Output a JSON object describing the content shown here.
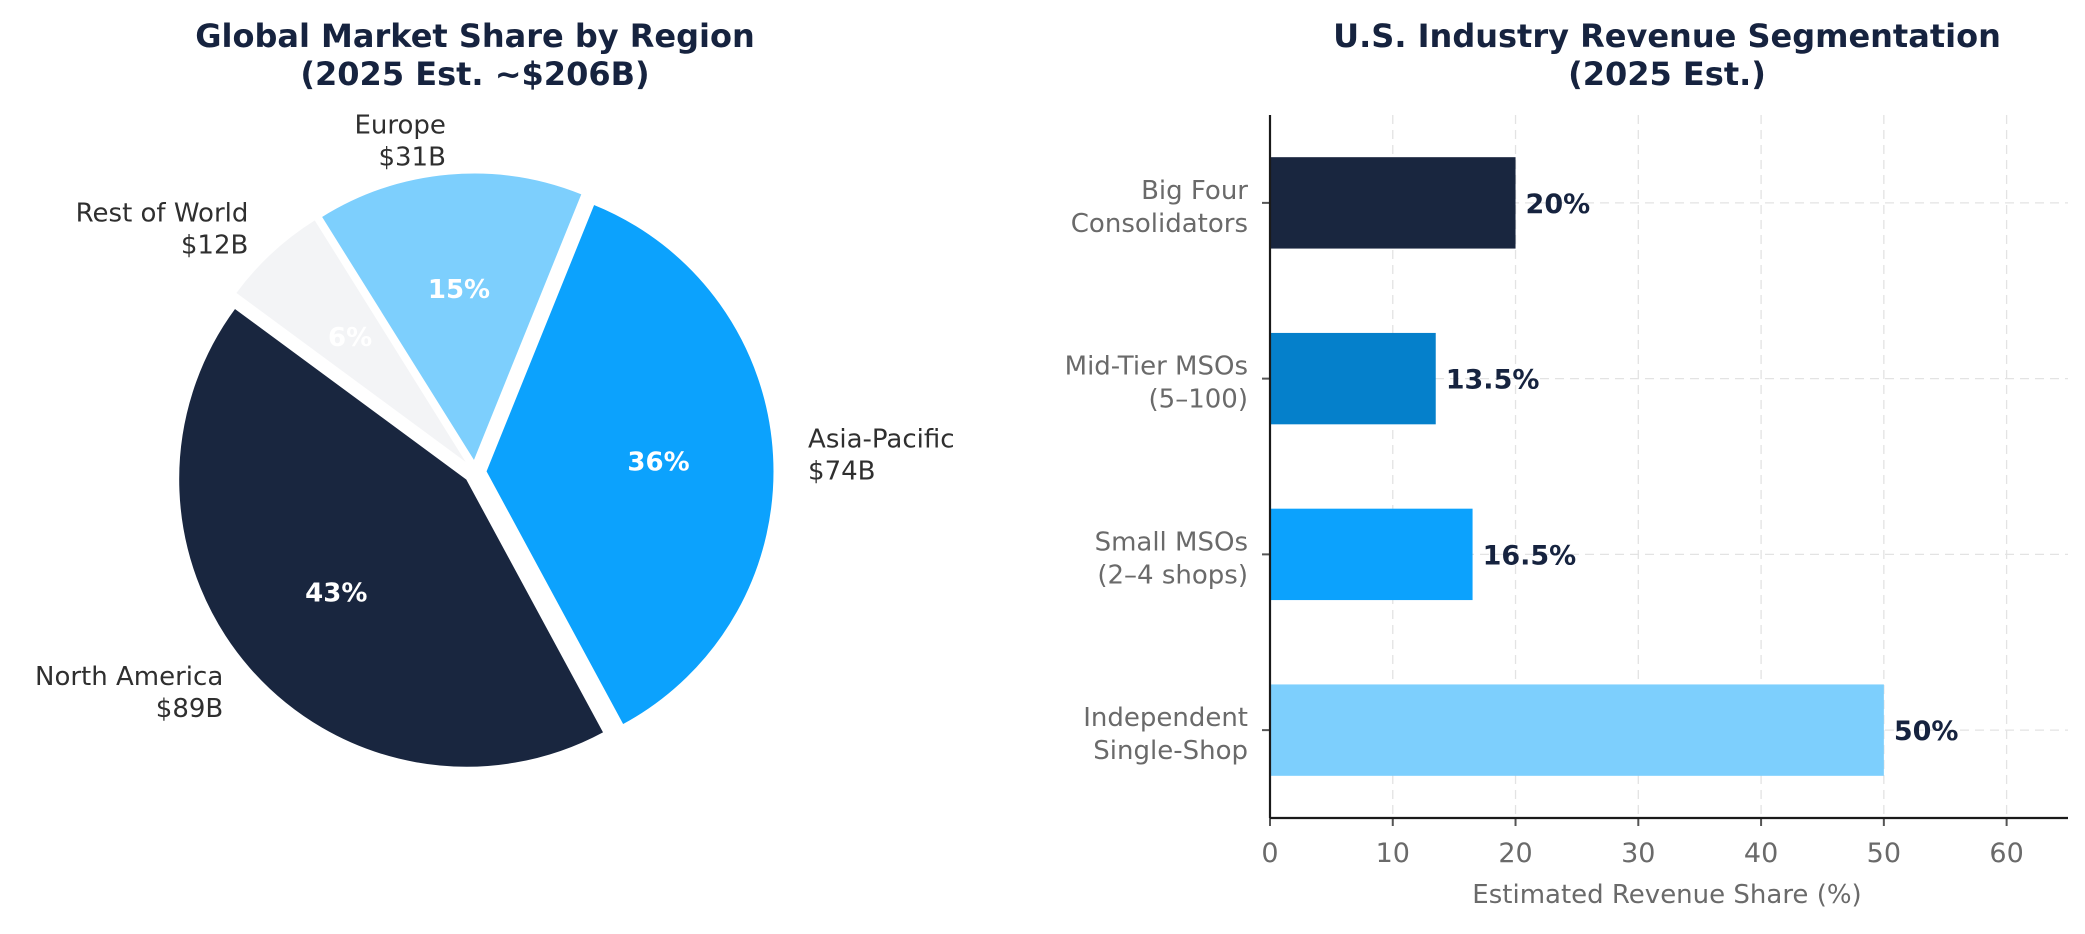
{
  "chart_data": [
    {
      "type": "pie",
      "title": "Global Market Share by Region\n(2025 Est. ~$206B)",
      "slices": [
        {
          "name": "Europe",
          "value_label": "$31B",
          "value": 31,
          "percent": 15,
          "percent_label": "15%",
          "color": "#7dcffd"
        },
        {
          "name": "Rest of World",
          "value_label": "$12B",
          "value": 12,
          "percent": 6,
          "percent_label": "6%",
          "color": "#f3f4f6"
        },
        {
          "name": "North America",
          "value_label": "$89B",
          "value": 89,
          "percent": 43,
          "percent_label": "43%",
          "color": "#19263f"
        },
        {
          "name": "Asia-Pacific",
          "value_label": "$74B",
          "value": 74,
          "percent": 36,
          "percent_label": "36%",
          "color": "#0ca2fd"
        }
      ],
      "exploded": true
    },
    {
      "type": "bar",
      "orientation": "horizontal",
      "title": "U.S. Industry Revenue Segmentation\n(2025 Est.)",
      "categories": [
        "Big Four\nConsolidators",
        "Mid-Tier MSOs\n(5–100)",
        "Small MSOs\n(2–4 shops)",
        "Independent\nSingle-Shop"
      ],
      "values": [
        20,
        13.5,
        16.5,
        50
      ],
      "value_labels": [
        "20%",
        "13.5%",
        "16.5%",
        "50%"
      ],
      "colors": [
        "#19263f",
        "#0580cb",
        "#0ca2fd",
        "#7dcffd"
      ],
      "xlabel": "Estimated Revenue Share (%)",
      "ylabel": "",
      "xlim": [
        0,
        65
      ],
      "xticks": [
        "0",
        "10",
        "20",
        "30",
        "40",
        "50",
        "60"
      ],
      "grid": true
    }
  ]
}
